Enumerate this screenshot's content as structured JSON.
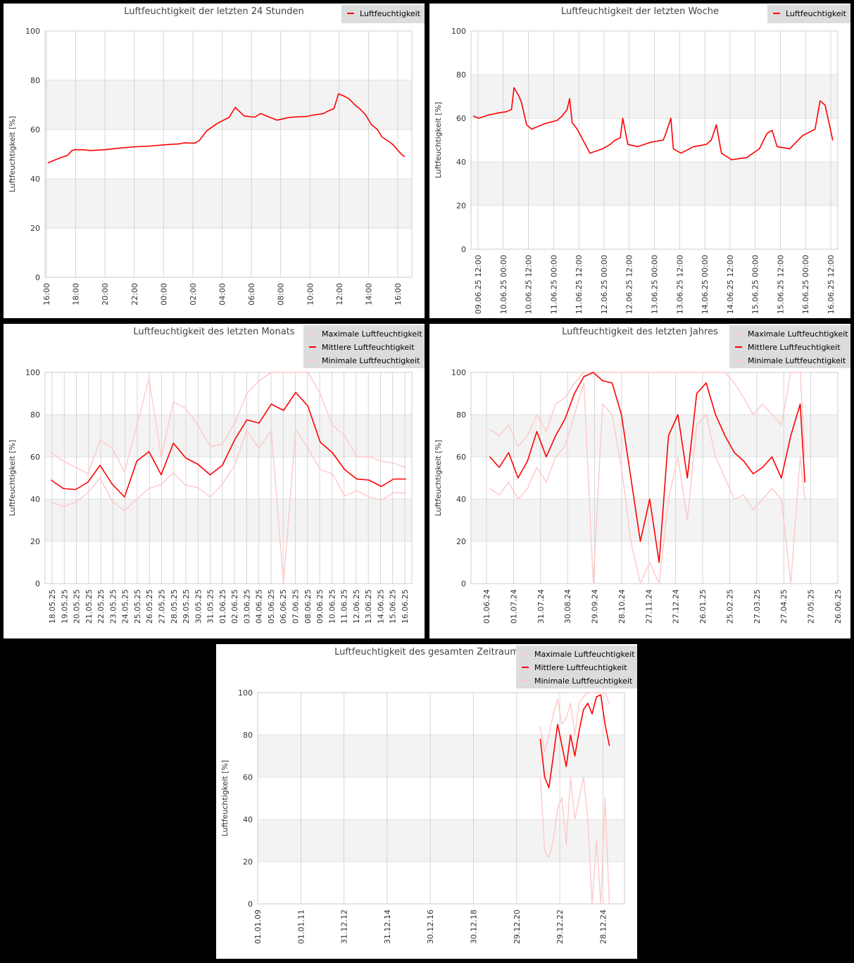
{
  "colors": {
    "max": "#ffc8c8",
    "mean": "#ff0000",
    "min": "#ffc8c8",
    "band": "#f3f3f3",
    "grid": "#cccccc"
  },
  "chart_data": [
    {
      "type": "line",
      "title": "Luftfeuchtigkeit der letzten 24 Stunden",
      "ylabel": "Luftfeuchtigkeit [%]",
      "ylim": [
        0,
        100
      ],
      "yticks": [
        "0",
        "20",
        "40",
        "60",
        "80",
        "100"
      ],
      "categories": [
        "16:00",
        "18:00",
        "20:00",
        "22:00",
        "00:00",
        "02:00",
        "04:00",
        "06:00",
        "08:00",
        "10:00",
        "12:00",
        "14:00",
        "16:00"
      ],
      "legend": "top-right",
      "x_range": [
        0,
        24.5
      ],
      "series": [
        {
          "name": "Luftfeuchtigkeit",
          "role": "mean",
          "x": [
            0.2,
            1,
            1.5,
            1.8,
            2,
            2.5,
            3,
            4,
            5,
            6,
            7,
            8,
            9,
            9.3,
            10,
            10.3,
            10.8,
            11.5,
            12.3,
            12.7,
            13.3,
            14,
            14.4,
            15,
            15.5,
            16,
            16.2,
            16.5,
            17,
            17.5,
            18,
            18.3,
            18.6,
            18.9,
            19.3,
            19.6,
            20,
            20.3,
            20.7,
            21,
            21.4,
            21.8,
            22.2,
            22.5,
            23,
            23.3,
            23.5,
            23.8,
            24
          ],
          "y": [
            46.5,
            48.5,
            49.5,
            51.5,
            51.8,
            51.8,
            51.5,
            51.8,
            52.5,
            53,
            53.3,
            53.8,
            54.2,
            54.6,
            54.5,
            55.5,
            59.5,
            62.5,
            65,
            69,
            65.5,
            65,
            66.5,
            65,
            63.8,
            64.5,
            64.8,
            65,
            65.2,
            65.3,
            66,
            66.2,
            66.5,
            67.5,
            68.5,
            74.5,
            73.5,
            72.5,
            70,
            68.5,
            66,
            62,
            60,
            57,
            55,
            53.5,
            52,
            50,
            49
          ]
        }
      ]
    },
    {
      "type": "line",
      "title": "Luftfeuchtigkeit der letzten Woche",
      "ylabel": "Luftfeuchtigkeit [%]",
      "ylim": [
        0,
        100
      ],
      "yticks": [
        "0",
        "20",
        "40",
        "60",
        "80",
        "100"
      ],
      "categories": [
        "09.06.25 12:00",
        "10.06.25 00:00",
        "10.06.25 12:00",
        "11.06.25 00:00",
        "11.06.25 12:00",
        "12.06.25 00:00",
        "12.06.25 12:00",
        "13.06.25 00:00",
        "13.06.25 12:00",
        "14.06.25 00:00",
        "14.06.25 12:00",
        "15.06.25 00:00",
        "15.06.25 12:00",
        "16.06.25 00:00",
        "16.06.25 12:00"
      ],
      "legend": "top-right",
      "x_range": [
        -0.1,
        14.4
      ],
      "series": [
        {
          "name": "Luftfeuchtigkeit",
          "role": "mean",
          "x": [
            0,
            0.2,
            0.6,
            1,
            1.3,
            1.5,
            1.6,
            1.8,
            1.9,
            2.1,
            2.3,
            2.8,
            3.3,
            3.5,
            3.7,
            3.8,
            3.9,
            4.1,
            4.6,
            5.1,
            5.4,
            5.6,
            5.8,
            5.9,
            6.1,
            6.5,
            7,
            7.5,
            7.6,
            7.8,
            7.9,
            8.2,
            8.7,
            9.2,
            9.4,
            9.6,
            9.8,
            10.2,
            10.8,
            11.3,
            11.6,
            11.8,
            12,
            12.5,
            13,
            13.5,
            13.7,
            13.9,
            14.2
          ],
          "y": [
            61,
            60,
            61.5,
            62.5,
            63,
            64,
            74,
            70,
            67,
            57,
            55,
            57.5,
            59,
            61,
            64,
            69,
            58,
            55,
            44,
            46,
            48,
            50,
            51,
            60,
            48,
            47,
            49,
            50,
            53,
            60,
            46,
            44,
            47,
            48,
            50,
            57,
            44,
            41,
            42,
            46,
            53,
            54.5,
            47,
            46,
            52,
            55,
            68,
            66,
            50
          ]
        }
      ]
    },
    {
      "type": "line",
      "title": "Luftfeuchtigkeit des letzten Monats",
      "ylabel": "Luftfeuchtigkeit [%]",
      "ylim": [
        0,
        100
      ],
      "yticks": [
        "0",
        "20",
        "40",
        "60",
        "80",
        "100"
      ],
      "categories": [
        "18.05.25",
        "19.05.25",
        "20.05.25",
        "21.05.25",
        "22.05.25",
        "23.05.25",
        "24.05.25",
        "25.05.25",
        "26.05.25",
        "27.05.25",
        "28.05.25",
        "29.05.25",
        "30.05.25",
        "31.05.25",
        "01.06.25",
        "02.06.25",
        "03.06.25",
        "04.06.25",
        "05.06.25",
        "06.06.25",
        "07.06.25",
        "08.06.25",
        "09.06.25",
        "10.06.25",
        "11.06.25",
        "12.06.25",
        "13.06.25",
        "14.06.25",
        "15.06.25",
        "16.06.25"
      ],
      "legend": "top-right",
      "x_range": [
        -0.5,
        29.5
      ],
      "series": [
        {
          "name": "Maximale Luftfeuchtigkeit",
          "role": "max",
          "x": [
            0,
            1,
            2,
            3,
            4,
            5,
            6,
            7,
            8,
            9,
            10,
            11,
            12,
            13,
            14,
            15,
            16,
            17,
            18,
            19,
            20,
            21,
            22,
            23,
            24,
            25,
            26,
            27,
            28,
            29
          ],
          "y": [
            62,
            58,
            55,
            52,
            68,
            64,
            53,
            75,
            97,
            60,
            86,
            83,
            75,
            65,
            66,
            76,
            90,
            96,
            100,
            100,
            100,
            100,
            90,
            75,
            70,
            60,
            60,
            58,
            57,
            55
          ]
        },
        {
          "name": "Mittlere Luftfeuchtigkeit",
          "role": "mean",
          "x": [
            0,
            1,
            2,
            3,
            4,
            5,
            6,
            7,
            8,
            9,
            10,
            11,
            12,
            13,
            14,
            15,
            16,
            17,
            18,
            19,
            20,
            21,
            22,
            23,
            24,
            25,
            26,
            27,
            28,
            29
          ],
          "y": [
            49,
            45,
            44.5,
            48,
            56,
            47,
            41,
            58,
            62.5,
            51.5,
            66.5,
            59.5,
            56.5,
            51.5,
            56,
            68,
            77.5,
            76,
            85,
            82,
            90.5,
            84,
            67,
            62,
            54,
            49.5,
            49,
            46,
            49.5,
            49.5
          ]
        },
        {
          "name": "Minimale Luftfeuchtigkeit",
          "role": "min",
          "x": [
            0,
            1,
            2,
            3,
            4,
            5,
            6,
            7,
            8,
            9,
            10,
            11,
            12,
            13,
            14,
            15,
            16,
            17,
            18,
            19,
            20,
            21,
            22,
            23,
            24,
            25,
            26,
            27,
            28,
            29
          ],
          "y": [
            38.5,
            36.5,
            38.5,
            43,
            50,
            39,
            34.5,
            40,
            45,
            47,
            52.5,
            46.5,
            45.5,
            41,
            47,
            56,
            72.5,
            64,
            72.5,
            0,
            73,
            64,
            54,
            52,
            41.5,
            44,
            41,
            39.5,
            43,
            43
          ]
        }
      ]
    },
    {
      "type": "line",
      "title": "Luftfeuchtigkeit des letzten Jahres",
      "ylabel": "Luftfeuchtigkeit [%]",
      "ylim": [
        0,
        100
      ],
      "yticks": [
        "0",
        "20",
        "40",
        "60",
        "80",
        "100"
      ],
      "categories": [
        "01.06.24",
        "01.07.24",
        "31.07.24",
        "30.08.24",
        "29.09.24",
        "28.10.24",
        "27.11.24",
        "27.12.24",
        "26.01.25",
        "25.02.25",
        "27.03.25",
        "27.04.25",
        "27.05.25",
        "26.06.25"
      ],
      "legend": "top-right",
      "x_range": [
        0,
        390
      ],
      "series": [
        {
          "name": "Maximale Luftfeuchtigkeit",
          "role": "max",
          "x": [
            20,
            30,
            40,
            50,
            60,
            70,
            80,
            90,
            100,
            110,
            120,
            130,
            140,
            150,
            160,
            170,
            180,
            190,
            200,
            210,
            220,
            230,
            240,
            250,
            260,
            270,
            280,
            290,
            300,
            310,
            320,
            330,
            340,
            350,
            355
          ],
          "y": [
            73,
            70,
            75,
            65,
            70,
            80,
            72,
            85,
            88,
            95,
            100,
            100,
            100,
            100,
            100,
            100,
            100,
            100,
            100,
            100,
            100,
            100,
            100,
            100,
            100,
            100,
            95,
            88,
            80,
            85,
            80,
            75,
            100,
            100,
            60
          ]
        },
        {
          "name": "Mittlere Luftfeuchtigkeit",
          "role": "mean",
          "x": [
            20,
            30,
            40,
            50,
            60,
            70,
            80,
            90,
            100,
            110,
            120,
            130,
            140,
            150,
            160,
            170,
            180,
            190,
            200,
            210,
            220,
            230,
            240,
            250,
            260,
            270,
            280,
            290,
            300,
            310,
            320,
            330,
            340,
            350,
            355
          ],
          "y": [
            60,
            55,
            62,
            50,
            58,
            72,
            60,
            70,
            78,
            90,
            98,
            100,
            96,
            95,
            80,
            50,
            20,
            40,
            10,
            70,
            80,
            50,
            90,
            95,
            80,
            70,
            62,
            58,
            52,
            55,
            60,
            50,
            70,
            85,
            48
          ]
        },
        {
          "name": "Minimale Luftfeuchtigkeit",
          "role": "min",
          "x": [
            20,
            30,
            40,
            50,
            60,
            70,
            80,
            90,
            100,
            110,
            120,
            130,
            140,
            150,
            160,
            170,
            180,
            190,
            200,
            210,
            220,
            230,
            240,
            250,
            260,
            270,
            280,
            290,
            300,
            310,
            320,
            330,
            340,
            350,
            355
          ],
          "y": [
            45,
            42,
            48,
            40,
            45,
            55,
            48,
            60,
            65,
            80,
            95,
            -5,
            85,
            80,
            55,
            20,
            -5,
            10,
            -5,
            40,
            60,
            30,
            75,
            80,
            60,
            50,
            40,
            42,
            35,
            40,
            45,
            40,
            -5,
            60,
            40
          ]
        }
      ]
    },
    {
      "type": "line",
      "title": "Luftfeuchtigkeit des gesamten Zeitraum",
      "ylabel": "Luftfeuchtigkeit [%]",
      "ylim": [
        0,
        100
      ],
      "yticks": [
        "0",
        "20",
        "40",
        "60",
        "80",
        "100"
      ],
      "categories": [
        "01.01.09",
        "01.01.11",
        "31.12.12",
        "31.12.14",
        "30.12.16",
        "30.12.18",
        "29.12.20",
        "29.12.22",
        "28.12.24"
      ],
      "legend": "top-right",
      "x_range": [
        0,
        17
      ],
      "series": [
        {
          "name": "Maximale Luftfeuchtigkeit",
          "role": "max",
          "x": [
            13.1,
            13.3,
            13.5,
            13.7,
            13.9,
            14.1,
            14.3,
            14.5,
            14.7,
            14.9,
            15.1,
            15.3,
            15.5,
            15.7,
            15.9,
            16.1,
            16.3
          ],
          "y": [
            84,
            72,
            80,
            90,
            97,
            85,
            88,
            95,
            80,
            95,
            98,
            100,
            100,
            100,
            100,
            100,
            95
          ]
        },
        {
          "name": "Mittlere Luftfeuchtigkeit",
          "role": "mean",
          "x": [
            13.1,
            13.3,
            13.5,
            13.7,
            13.9,
            14.1,
            14.3,
            14.5,
            14.7,
            14.9,
            15.1,
            15.3,
            15.5,
            15.7,
            15.9,
            16.1,
            16.3
          ],
          "y": [
            78,
            60,
            55,
            70,
            85,
            75,
            65,
            80,
            70,
            82,
            92,
            95,
            90,
            98,
            99,
            85,
            75
          ]
        },
        {
          "name": "Minimale Luftfeuchtigkeit",
          "role": "min",
          "x": [
            13.1,
            13.3,
            13.5,
            13.7,
            13.9,
            14.1,
            14.3,
            14.5,
            14.7,
            14.9,
            15.1,
            15.3,
            15.5,
            15.7,
            15.9,
            16.1,
            16.3
          ],
          "y": [
            60,
            25,
            22,
            30,
            45,
            50,
            28,
            60,
            40,
            50,
            60,
            40,
            -5,
            30,
            -5,
            50,
            -5
          ]
        }
      ]
    }
  ]
}
